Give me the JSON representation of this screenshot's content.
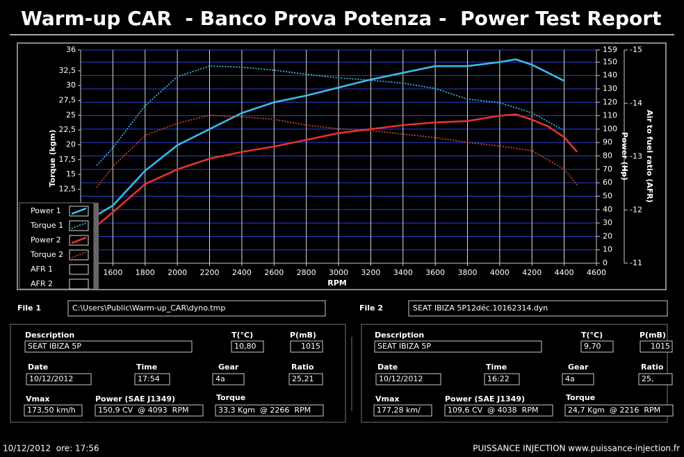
{
  "header": {
    "title": "Warm-up CAR  - Banco Prova Potenza -  Power Test Report"
  },
  "chart_data": {
    "type": "line",
    "x_label": "RPM",
    "y_label": "Torque (kgm)",
    "y2_label": "Power (Hp)",
    "y3_label": "Air to fuel ratio (AFR)",
    "xlim": [
      1400,
      4600
    ],
    "xticks": [
      1600,
      1800,
      2000,
      2200,
      2400,
      2600,
      2800,
      3000,
      3200,
      3400,
      3600,
      3800,
      4000,
      4200,
      4400,
      4600
    ],
    "ylim": [
      0,
      36
    ],
    "yticks": [
      {
        "value": 12.5,
        "label": "12,5"
      },
      15,
      {
        "value": 17.5,
        "label": "17,5"
      },
      20,
      {
        "value": 22.5,
        "label": "22,5"
      },
      25,
      {
        "value": 27.5,
        "label": "27,5"
      },
      30,
      {
        "value": 32.5,
        "label": "32,5"
      },
      36
    ],
    "y2lim": [
      0,
      159
    ],
    "y2ticks": [
      0,
      10,
      20,
      30,
      40,
      50,
      60,
      70,
      80,
      90,
      100,
      110,
      120,
      130,
      140,
      150,
      159
    ],
    "y3lim": [
      -11,
      -15
    ],
    "y3ticks": [
      -15,
      -14,
      -13,
      -12,
      -11
    ],
    "grid": true,
    "series": [
      {
        "name": "Power 1",
        "color": "#3cb9ea",
        "axis": "y2",
        "dashed": false,
        "x": [
          1500,
          1600,
          1800,
          2000,
          2200,
          2400,
          2600,
          2800,
          3000,
          3200,
          3400,
          3600,
          3800,
          4000,
          4100,
          4200,
          4300,
          4400
        ],
        "values": [
          36,
          43,
          69,
          88,
          100,
          112,
          120,
          125,
          131,
          137,
          142,
          147,
          147,
          150,
          152,
          148,
          142,
          136
        ]
      },
      {
        "name": "Torque 1",
        "color": "#3cb9ea",
        "axis": "y",
        "dashed": true,
        "x": [
          1500,
          1600,
          1800,
          2000,
          2200,
          2400,
          2600,
          2800,
          3000,
          3200,
          3400,
          3600,
          3800,
          4000,
          4200,
          4400
        ],
        "values": [
          16.5,
          19.5,
          26.6,
          31.5,
          33.3,
          33.1,
          32.6,
          31.9,
          31.3,
          30.9,
          30.4,
          29.5,
          27.7,
          27.1,
          25.4,
          22.4
        ]
      },
      {
        "name": "Power 2",
        "color": "#e5322a",
        "axis": "y2",
        "dashed": false,
        "x": [
          1500,
          1600,
          1800,
          2000,
          2200,
          2400,
          2600,
          2800,
          3000,
          3200,
          3400,
          3600,
          3800,
          4000,
          4100,
          4200,
          4300,
          4400,
          4480
        ],
        "values": [
          28,
          38,
          59,
          70,
          78,
          83,
          87,
          92,
          97,
          100,
          103,
          105,
          106,
          110,
          111,
          107,
          102,
          94,
          83
        ]
      },
      {
        "name": "Torque 2",
        "color": "#c8462c",
        "axis": "y",
        "dashed": true,
        "x": [
          1500,
          1600,
          1800,
          2000,
          2200,
          2400,
          2600,
          2800,
          3000,
          3200,
          3400,
          3600,
          3800,
          4000,
          4200,
          4400,
          4480
        ],
        "values": [
          12.8,
          16.3,
          21.6,
          23.6,
          25.0,
          24.7,
          24.3,
          23.3,
          22.7,
          22.4,
          21.8,
          21.2,
          20.4,
          19.8,
          19.0,
          15.9,
          13.2
        ]
      },
      {
        "name": "AFR 1",
        "color": "#000000",
        "axis": "y3",
        "dashed": false,
        "x": [],
        "values": []
      },
      {
        "name": "AFR 2",
        "color": "#000000",
        "axis": "y3",
        "dashed": false,
        "x": [],
        "values": []
      }
    ]
  },
  "files": [
    {
      "label": "File 1",
      "path": "C:\\Users\\Public\\Warm-up_CAR\\dyno.tmp"
    },
    {
      "label": "File 2",
      "path": "SEAT IBIZA 5P12déc.10162314.dyn"
    }
  ],
  "panels": [
    {
      "fields": [
        {
          "label": "Description",
          "value": "SEAT IBIZA 5P"
        },
        {
          "label": "T(°C)",
          "value": "10,80"
        },
        {
          "label": "P(mB)",
          "value": "1015"
        },
        {
          "label": "Date",
          "value": "10/12/2012"
        },
        {
          "label": "Time",
          "value": "17:54"
        },
        {
          "label": "Gear",
          "value": "4a"
        },
        {
          "label": "Ratio",
          "value": "25,21"
        },
        {
          "label": "Vmax",
          "value": "173,50 km/h"
        },
        {
          "label": "Power (SAE J1349)",
          "value": "150,9 CV  @ 4093  RPM"
        },
        {
          "label": "Torque",
          "value": "33,3 Kgm  @ 2266  RPM"
        }
      ]
    },
    {
      "fields": [
        {
          "label": "Description",
          "value": "SEAT IBIZA 5P"
        },
        {
          "label": "T(°C)",
          "value": "9,70"
        },
        {
          "label": "P(mB)",
          "value": "1015"
        },
        {
          "label": "Date",
          "value": "10/12/2012"
        },
        {
          "label": "Time",
          "value": "16:22"
        },
        {
          "label": "Gear",
          "value": "4a"
        },
        {
          "label": "Ratio",
          "value": "25,"
        },
        {
          "label": "Vmax",
          "value": "177,28 km/"
        },
        {
          "label": "Power (SAE J1349)",
          "value": "109,6 CV  @ 4038  RPM"
        },
        {
          "label": "Torque",
          "value": "24,7 Kgm  @ 2216  RPM"
        }
      ]
    }
  ],
  "footer": {
    "left": "10/12/2012  ore: 17:56",
    "right": "PUISSANCE INJECTION www.puissance-injection.fr"
  }
}
